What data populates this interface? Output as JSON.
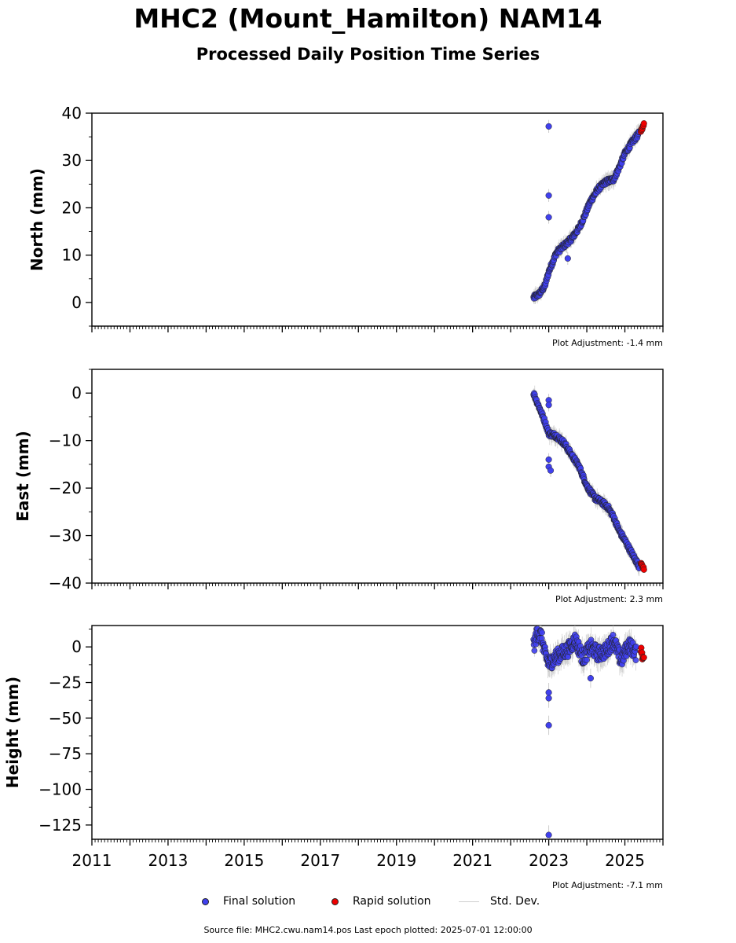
{
  "header": {
    "title": "MHC2 (Mount_Hamilton) NAM14",
    "subtitle": "Processed Daily Position Time Series"
  },
  "footer": {
    "source_note": "Source file: MHC2.cwu.nam14.pos  Last epoch plotted: 2025-07-01 12:00:00"
  },
  "legend": {
    "items": [
      {
        "label": "Final solution",
        "marker": "final-dot"
      },
      {
        "label": "Rapid solution",
        "marker": "rapid-dot"
      },
      {
        "label": "Std. Dev.",
        "marker": "std-line"
      }
    ]
  },
  "colors": {
    "final": "#4040ee",
    "rapid": "#ee0000",
    "errorbar": "#c8c8c8",
    "edge": "#222222"
  },
  "chart_data": [
    {
      "type": "scatter",
      "ylabel": "North (mm)",
      "xlim": [
        2011,
        2026
      ],
      "ylim": [
        -5,
        40
      ],
      "yticks": [
        0,
        10,
        20,
        30,
        40
      ],
      "ytick_labels": [
        "0",
        "10",
        "20",
        "30",
        "40"
      ],
      "xtick_labels_shown": false,
      "annotation": "Plot Adjustment: -1.4 mm",
      "series": [
        {
          "name": "Final solution",
          "x": [
            2022.6,
            2022.75,
            2022.9,
            2023.0,
            2023.2,
            2023.4,
            2023.6,
            2023.8,
            2023.95,
            2024.1,
            2024.3,
            2024.5,
            2024.7,
            2024.85,
            2025.0,
            2025.2,
            2025.38
          ],
          "y": [
            1.0,
            1.8,
            3.5,
            6.5,
            10.5,
            12.0,
            13.5,
            15.8,
            18.5,
            21.5,
            24.0,
            25.5,
            26.0,
            28.5,
            31.5,
            34.0,
            35.8
          ],
          "outliers": [
            {
              "x": 2023.0,
              "y": 37.2
            },
            {
              "x": 2023.0,
              "y": 22.6
            },
            {
              "x": 2023.0,
              "y": 18.0
            },
            {
              "x": 2023.5,
              "y": 9.3
            }
          ]
        },
        {
          "name": "Rapid solution",
          "x": [
            2025.42,
            2025.46,
            2025.5
          ],
          "y": [
            36.0,
            37.0,
            37.8
          ]
        }
      ]
    },
    {
      "type": "scatter",
      "ylabel": "East (mm)",
      "xlim": [
        2011,
        2026
      ],
      "ylim": [
        -40,
        5
      ],
      "yticks": [
        -40,
        -30,
        -20,
        -10,
        0
      ],
      "ytick_labels": [
        "−40",
        "−30",
        "−20",
        "−10",
        "0"
      ],
      "xtick_labels_shown": false,
      "annotation": "Plot Adjustment: 2.3 mm",
      "series": [
        {
          "name": "Final solution",
          "x": [
            2022.6,
            2022.75,
            2022.9,
            2023.0,
            2023.2,
            2023.4,
            2023.6,
            2023.8,
            2024.0,
            2024.2,
            2024.4,
            2024.55,
            2024.7,
            2024.85,
            2025.0,
            2025.2,
            2025.38
          ],
          "y": [
            0.0,
            -3.0,
            -6.0,
            -8.5,
            -9.0,
            -10.5,
            -13.0,
            -15.5,
            -19.5,
            -22.0,
            -23.0,
            -24.0,
            -26.0,
            -29.0,
            -31.0,
            -34.0,
            -36.5
          ],
          "outliers": [
            {
              "x": 2023.0,
              "y": -1.5
            },
            {
              "x": 2023.0,
              "y": -2.5
            },
            {
              "x": 2023.0,
              "y": -14.0
            },
            {
              "x": 2023.0,
              "y": -15.5
            },
            {
              "x": 2023.05,
              "y": -16.3
            }
          ]
        },
        {
          "name": "Rapid solution",
          "x": [
            2025.42,
            2025.46,
            2025.5
          ],
          "y": [
            -35.8,
            -36.5,
            -37.0
          ]
        }
      ]
    },
    {
      "type": "scatter",
      "ylabel": "Height (mm)",
      "xlim": [
        2011,
        2026
      ],
      "ylim": [
        -135,
        15
      ],
      "yticks": [
        -125,
        -100,
        -75,
        -50,
        -25,
        0
      ],
      "ytick_labels": [
        "−125",
        "−100",
        "−75",
        "−50",
        "−25",
        "0"
      ],
      "xticks": [
        2011,
        2013,
        2015,
        2017,
        2019,
        2021,
        2023,
        2025
      ],
      "xtick_labels": [
        "2011",
        "2013",
        "2015",
        "2017",
        "2019",
        "2021",
        "2023",
        "2025"
      ],
      "xtick_labels_shown": true,
      "annotation": "Plot Adjustment: -7.1 mm",
      "series": [
        {
          "name": "Final solution",
          "x": [
            2022.6,
            2022.7,
            2022.8,
            2022.9,
            2023.0,
            2023.15,
            2023.3,
            2023.5,
            2023.7,
            2023.9,
            2024.1,
            2024.3,
            2024.5,
            2024.7,
            2024.9,
            2025.1,
            2025.3
          ],
          "y": [
            0.0,
            10.0,
            8.0,
            -5.0,
            -12.0,
            -8.0,
            -5.0,
            -2.0,
            5.0,
            -8.0,
            0.0,
            -5.0,
            -3.0,
            5.0,
            -10.0,
            2.0,
            -5.0
          ],
          "outliers": [
            {
              "x": 2023.0,
              "y": -32.0
            },
            {
              "x": 2023.0,
              "y": -36.0
            },
            {
              "x": 2023.0,
              "y": -55.0
            },
            {
              "x": 2023.0,
              "y": -132.0
            },
            {
              "x": 2024.1,
              "y": -22.0
            }
          ]
        },
        {
          "name": "Rapid solution",
          "x": [
            2025.42,
            2025.46,
            2025.5
          ],
          "y": [
            -2.0,
            -6.0,
            -9.0
          ]
        }
      ]
    }
  ]
}
